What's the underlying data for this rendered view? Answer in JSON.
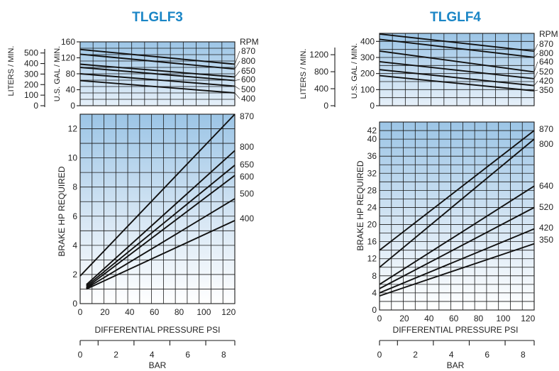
{
  "chart_data": [
    {
      "type": "line",
      "title": "TLGLF3",
      "flow_panel": {
        "ylabel": "U.S. GAL / MIN.",
        "ylim": [
          0,
          160
        ],
        "yticks": [
          0,
          40,
          80,
          120,
          160
        ],
        "xlim": [
          0,
          125
        ],
        "secondary_axis": {
          "label": "LITERS / MIN.",
          "ticks": [
            0,
            100,
            200,
            300,
            400,
            500
          ]
        },
        "rpm_header": "RPM",
        "series": [
          {
            "name": "870",
            "x": [
              0,
              125
            ],
            "y": [
              141,
              104
            ]
          },
          {
            "name": "800",
            "x": [
              0,
              125
            ],
            "y": [
              129,
              92
            ]
          },
          {
            "name": "650",
            "x": [
              0,
              125
            ],
            "y": [
              104,
              72
            ]
          },
          {
            "name": "600",
            "x": [
              0,
              125
            ],
            "y": [
              96,
              63
            ]
          },
          {
            "name": "500",
            "x": [
              0,
              125
            ],
            "y": [
              80,
              49
            ]
          },
          {
            "name": "400",
            "x": [
              0,
              125
            ],
            "y": [
              63,
              32
            ]
          }
        ]
      },
      "power_panel": {
        "ylabel": "BRAKE HP REQUIRED",
        "ylim": [
          0,
          13
        ],
        "yticks": [
          0,
          2,
          4,
          6,
          8,
          10,
          12
        ],
        "xlabel": "DIFFERENTIAL PRESSURE PSI",
        "xlim": [
          0,
          125
        ],
        "xticks": [
          0,
          20,
          40,
          60,
          80,
          100,
          120
        ],
        "bar_axis": {
          "label": "BAR",
          "ticks": [
            0,
            2,
            4,
            6,
            8
          ]
        },
        "series": [
          {
            "name": "870",
            "x": [
              0,
              125
            ],
            "y": [
              1.9,
              13
            ]
          },
          {
            "name": "800",
            "x": [
              5,
              125
            ],
            "y": [
              1.3,
              10.5
            ]
          },
          {
            "name": "650",
            "x": [
              5,
              125
            ],
            "y": [
              1.2,
              9.5
            ]
          },
          {
            "name": "600",
            "x": [
              5,
              125
            ],
            "y": [
              1.1,
              8.8
            ]
          },
          {
            "name": "500",
            "x": [
              5,
              125
            ],
            "y": [
              1.05,
              7.2
            ]
          },
          {
            "name": "400",
            "x": [
              5,
              125
            ],
            "y": [
              1.0,
              5.7
            ]
          }
        ]
      }
    },
    {
      "type": "line",
      "title": "TLGLF4",
      "flow_panel": {
        "ylabel": "U.S. GAL / MIN.",
        "ylim": [
          0,
          450
        ],
        "yticks": [
          0,
          100,
          200,
          300,
          400
        ],
        "xlim": [
          0,
          125
        ],
        "secondary_axis": {
          "label": "LITERS / MIN.",
          "ticks": [
            0,
            400,
            800,
            1200
          ]
        },
        "rpm_header": "RPM",
        "series": [
          {
            "name": "870",
            "x": [
              0,
              125
            ],
            "y": [
              446,
              339
            ]
          },
          {
            "name": "800",
            "x": [
              0,
              125
            ],
            "y": [
              413,
              301
            ]
          },
          {
            "name": "640",
            "x": [
              0,
              125
            ],
            "y": [
              340,
              210
            ]
          },
          {
            "name": "520",
            "x": [
              0,
              125
            ],
            "y": [
              274,
              168
            ]
          },
          {
            "name": "420",
            "x": [
              0,
              125
            ],
            "y": [
              224,
              125
            ]
          },
          {
            "name": "350",
            "x": [
              0,
              125
            ],
            "y": [
              187,
              92
            ]
          }
        ]
      },
      "power_panel": {
        "ylabel": "BRAKE HP REQUIRED",
        "ylim": [
          0,
          44
        ],
        "yticks": [
          0,
          4,
          8,
          12,
          16,
          20,
          24,
          28,
          32,
          36,
          40,
          42
        ],
        "xlabel": "DIFFERENTIAL PRESSURE PSI",
        "xlim": [
          0,
          125
        ],
        "xticks": [
          0,
          20,
          40,
          60,
          80,
          100,
          120
        ],
        "bar_axis": {
          "label": "BAR",
          "ticks": [
            0,
            2,
            4,
            6,
            8
          ]
        },
        "series": [
          {
            "name": "870",
            "x": [
              0,
              125
            ],
            "y": [
              14,
              42
            ]
          },
          {
            "name": "800",
            "x": [
              0,
              125
            ],
            "y": [
              10,
              40
            ]
          },
          {
            "name": "640",
            "x": [
              0,
              125
            ],
            "y": [
              6,
              29
            ]
          },
          {
            "name": "520",
            "x": [
              0,
              125
            ],
            "y": [
              5,
              24
            ]
          },
          {
            "name": "420",
            "x": [
              0,
              125
            ],
            "y": [
              4,
              19
            ]
          },
          {
            "name": "350",
            "x": [
              0,
              125
            ],
            "y": [
              3.3,
              15.5
            ]
          }
        ]
      }
    }
  ]
}
